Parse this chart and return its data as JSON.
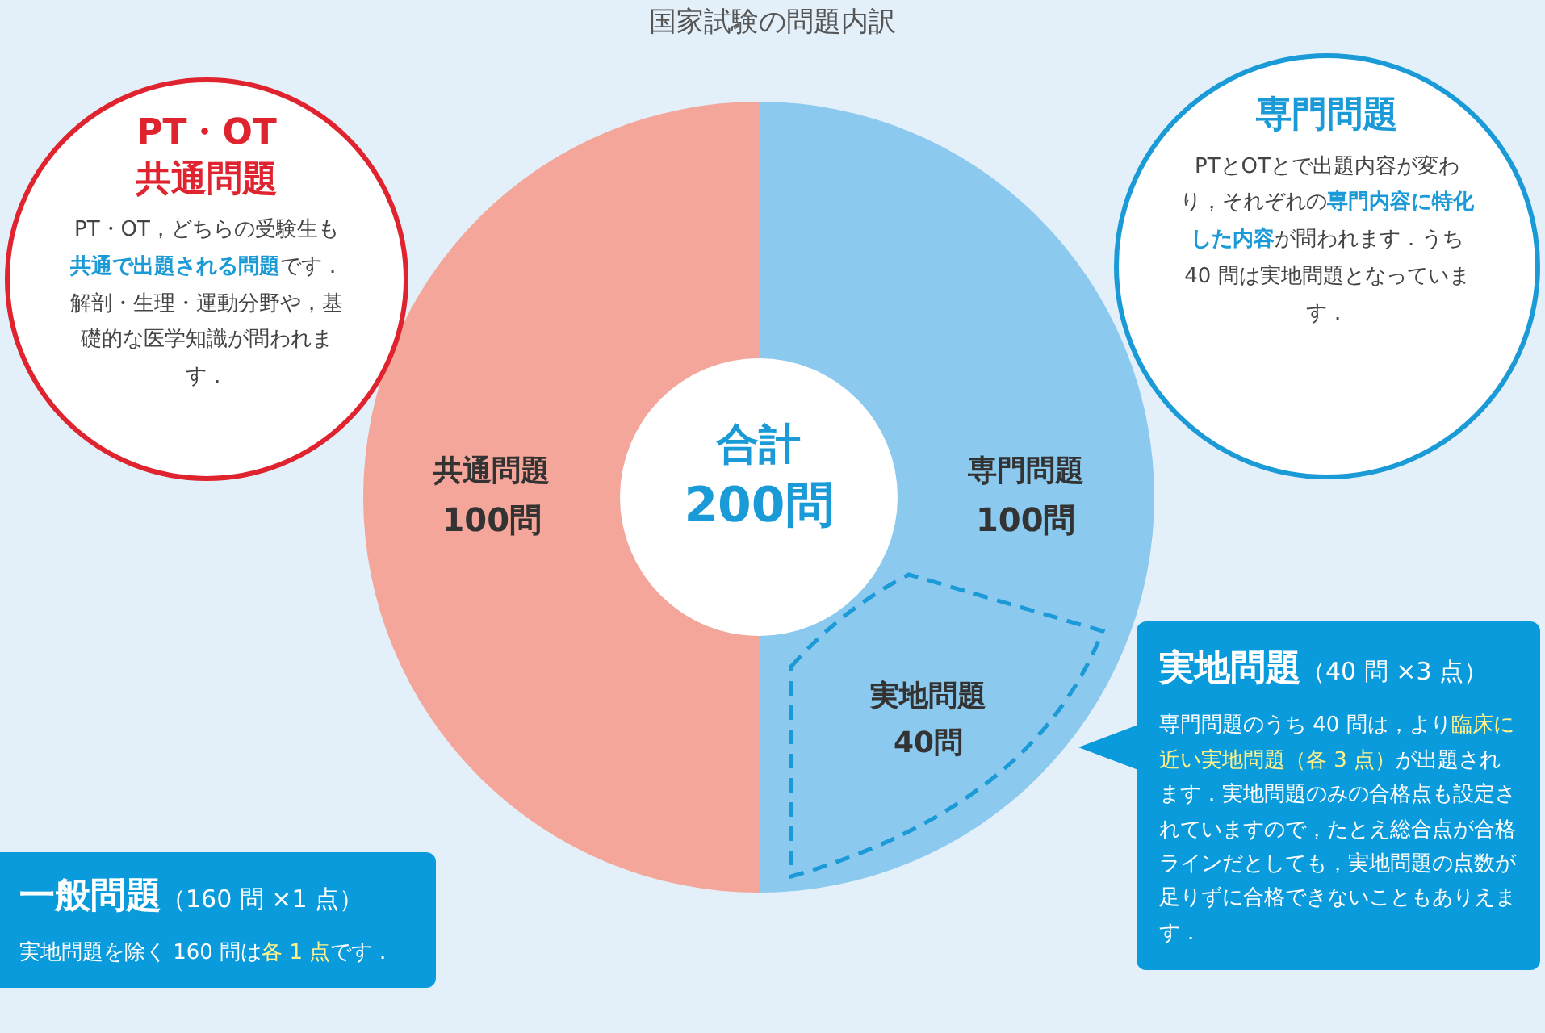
{
  "chart_data": {
    "type": "donut",
    "title": "国家試験の問題内訳",
    "categories": [
      "共通問題",
      "専門問題"
    ],
    "values": [
      100,
      100
    ],
    "value_labels": [
      "100問",
      "100問"
    ],
    "colors": [
      "#f4a69a",
      "#8cc9ee"
    ],
    "legend": false,
    "annotations": [
      "合計",
      "200問",
      "PT・OT",
      "共通問題",
      "PT・OT，どちらの受験生も",
      "共通で出題される問題",
      "です．解剖・生理・運動分野や，基礎的な医学知識が問われます．",
      "専門問題",
      "PTとOTとで出題内容が変わり，それぞれの",
      "専門内容に特化した内容",
      "が問われます．うち 40 問は実地問題となっています．",
      "実地問題",
      "40問",
      "実地問題",
      "（40 問 ×3 点）",
      "専門問題のうち 40 問は，より",
      "臨床に近い実地問題（各 3 点）",
      "が出題されます．実地問題のみの合格点も設定されていますので，たとえ総合点が合格ラインだとしても，実地問題の点数が足りずに合格できないこともありえます．",
      "一般問題",
      "（160 問 ×1 点）",
      "実地問題を除く 160 問は",
      "各 1 点",
      "です．"
    ]
  }
}
